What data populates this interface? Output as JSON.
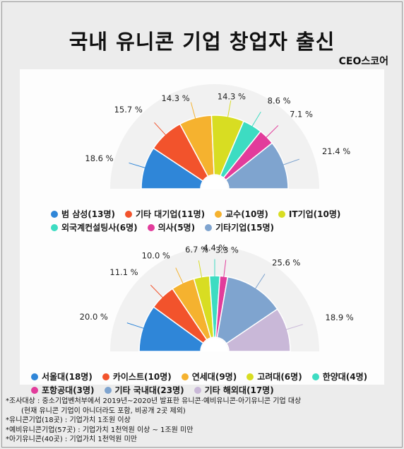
{
  "title": "국내 유니콘 기업 창업자 출신",
  "brand": "CEO스코어",
  "chart_data": [
    {
      "type": "pie",
      "subtype": "half-donut",
      "categories": [
        "범 삼성(13명)",
        "기타 대기업(11명)",
        "교수(10명)",
        "IT기업(10명)",
        "외국계컨설팅사(6명)",
        "의사(5명)",
        "기타기업(15명)"
      ],
      "values": [
        18.6,
        15.7,
        14.3,
        14.3,
        8.6,
        7.1,
        21.4
      ],
      "labels": [
        "18.6 %",
        "15.7 %",
        "14.3 %",
        "14.3 %",
        "8.6 %",
        "7.1 %",
        "21.4 %"
      ],
      "colors": [
        "#2f86d8",
        "#f2532c",
        "#f5b22f",
        "#d8dd22",
        "#3ddcc2",
        "#e23c9b",
        "#7fa4cf"
      ],
      "legend_position": "bottom"
    },
    {
      "type": "pie",
      "subtype": "half-donut",
      "categories": [
        "서울대(18명)",
        "카이스트(10명)",
        "연세대(9명)",
        "고려대(6명)",
        "한양대(4명)",
        "포항공대(3명)",
        "기타 국내대(23명)",
        "기타 해외대(17명)"
      ],
      "values": [
        20.0,
        11.1,
        10.0,
        6.7,
        4.4,
        3.3,
        25.6,
        18.9
      ],
      "labels": [
        "20.0 %",
        "11.1 %",
        "10.0 %",
        "6.7 %",
        "4.4 %",
        "3.3 %",
        "25.6 %",
        "18.9 %"
      ],
      "colors": [
        "#2f86d8",
        "#f2532c",
        "#f5b22f",
        "#d8dd22",
        "#3ddcc2",
        "#e23c9b",
        "#7fa4cf",
        "#c9b8d8"
      ],
      "legend_position": "bottom"
    }
  ],
  "notes": [
    "*조사대상 : 중소기업벤처부에서 2019년~2020년 발표한 유니콘·예비유니콘·아기유니콘 기업 대상",
    "   (현재 유니콘 기업이 아니더라도 포함, 비공개 2곳 제외)",
    "*유니콘기업(18곳) : 기업가치 1조원 이상",
    "*예비유니콘기업(57곳) : 기업가치 1천억원 이상 ~ 1조원 미만",
    "*아기유니콘(40곳) : 기업가치 1천억원 미만"
  ]
}
